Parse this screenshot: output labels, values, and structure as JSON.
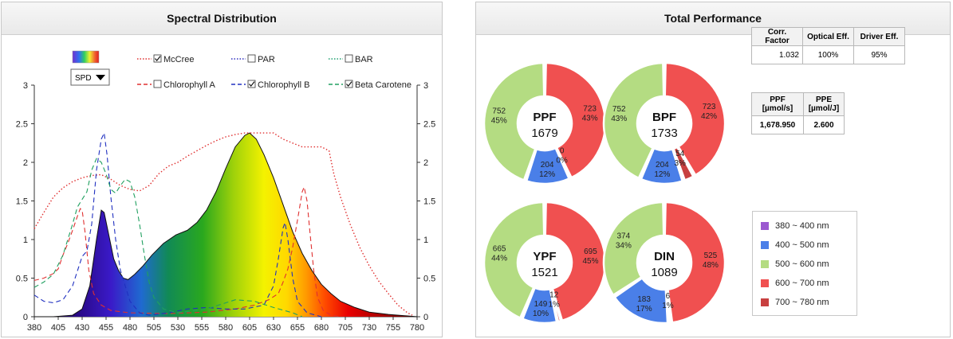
{
  "spd_panel": {
    "title": "Spectral Distribution",
    "dropdown_value": "SPD",
    "legend": [
      {
        "label": "McCree",
        "checked": true,
        "color": "#e03030",
        "style": "dotted"
      },
      {
        "label": "PAR",
        "checked": false,
        "color": "#3030c0",
        "style": "dotted"
      },
      {
        "label": "BAR",
        "checked": false,
        "color": "#20a070",
        "style": "dotted"
      },
      {
        "label": "Chlorophyll A",
        "checked": false,
        "color": "#e03030",
        "style": "dashed"
      },
      {
        "label": "Chlorophyll B",
        "checked": true,
        "color": "#2030c0",
        "style": "dashed"
      },
      {
        "label": "Beta Carotene",
        "checked": true,
        "color": "#20a060",
        "style": "dashed"
      }
    ]
  },
  "chart_data": {
    "type": "area",
    "x_ticks": [
      380,
      405,
      430,
      455,
      480,
      505,
      530,
      555,
      580,
      605,
      630,
      655,
      680,
      705,
      730,
      755,
      780
    ],
    "y_ticks": [
      "0",
      "0.5",
      "1",
      "1.5",
      "2",
      "2.5",
      "3"
    ],
    "ylim": [
      0,
      3
    ],
    "xlim": [
      380,
      780
    ],
    "series": [
      {
        "name": "SPD",
        "points": [
          [
            380,
            0
          ],
          [
            400,
            0
          ],
          [
            420,
            0.02
          ],
          [
            430,
            0.1
          ],
          [
            438,
            0.4
          ],
          [
            445,
            1.0
          ],
          [
            450,
            1.38
          ],
          [
            453,
            1.35
          ],
          [
            458,
            1.05
          ],
          [
            463,
            0.75
          ],
          [
            468,
            0.6
          ],
          [
            473,
            0.5
          ],
          [
            478,
            0.48
          ],
          [
            485,
            0.55
          ],
          [
            493,
            0.65
          ],
          [
            503,
            0.8
          ],
          [
            515,
            0.95
          ],
          [
            528,
            1.06
          ],
          [
            540,
            1.12
          ],
          [
            550,
            1.22
          ],
          [
            560,
            1.38
          ],
          [
            570,
            1.62
          ],
          [
            580,
            1.92
          ],
          [
            590,
            2.2
          ],
          [
            600,
            2.35
          ],
          [
            605,
            2.38
          ],
          [
            612,
            2.3
          ],
          [
            620,
            2.1
          ],
          [
            630,
            1.8
          ],
          [
            640,
            1.45
          ],
          [
            650,
            1.1
          ],
          [
            660,
            0.82
          ],
          [
            670,
            0.6
          ],
          [
            680,
            0.42
          ],
          [
            690,
            0.3
          ],
          [
            700,
            0.2
          ],
          [
            715,
            0.12
          ],
          [
            730,
            0.06
          ],
          [
            750,
            0.03
          ],
          [
            770,
            0.01
          ],
          [
            780,
            0
          ]
        ]
      },
      {
        "name": "McCree",
        "points": [
          [
            380,
            1.14
          ],
          [
            390,
            1.35
          ],
          [
            400,
            1.55
          ],
          [
            410,
            1.67
          ],
          [
            420,
            1.75
          ],
          [
            430,
            1.8
          ],
          [
            440,
            1.83
          ],
          [
            450,
            1.84
          ],
          [
            460,
            1.78
          ],
          [
            470,
            1.7
          ],
          [
            480,
            1.65
          ],
          [
            490,
            1.63
          ],
          [
            500,
            1.7
          ],
          [
            510,
            1.85
          ],
          [
            520,
            1.95
          ],
          [
            530,
            2.0
          ],
          [
            540,
            2.08
          ],
          [
            550,
            2.15
          ],
          [
            560,
            2.22
          ],
          [
            570,
            2.28
          ],
          [
            580,
            2.33
          ],
          [
            590,
            2.36
          ],
          [
            600,
            2.38
          ],
          [
            610,
            2.38
          ],
          [
            620,
            2.38
          ],
          [
            630,
            2.38
          ],
          [
            640,
            2.3
          ],
          [
            650,
            2.25
          ],
          [
            660,
            2.2
          ],
          [
            670,
            2.2
          ],
          [
            680,
            2.2
          ],
          [
            688,
            2.15
          ],
          [
            693,
            1.85
          ],
          [
            700,
            1.55
          ],
          [
            710,
            1.2
          ],
          [
            720,
            0.9
          ],
          [
            730,
            0.66
          ],
          [
            740,
            0.46
          ],
          [
            750,
            0.3
          ],
          [
            760,
            0.15
          ],
          [
            770,
            0.05
          ],
          [
            775,
            0.02
          ]
        ]
      },
      {
        "name": "Chlorophyll A",
        "points": [
          [
            380,
            0.47
          ],
          [
            390,
            0.5
          ],
          [
            400,
            0.56
          ],
          [
            405,
            0.62
          ],
          [
            410,
            0.8
          ],
          [
            415,
            0.95
          ],
          [
            420,
            1.12
          ],
          [
            425,
            1.3
          ],
          [
            428,
            1.4
          ],
          [
            430,
            1.38
          ],
          [
            433,
            1.1
          ],
          [
            437,
            0.6
          ],
          [
            442,
            0.3
          ],
          [
            450,
            0.15
          ],
          [
            460,
            0.08
          ],
          [
            480,
            0.05
          ],
          [
            520,
            0.04
          ],
          [
            560,
            0.06
          ],
          [
            590,
            0.1
          ],
          [
            610,
            0.15
          ],
          [
            625,
            0.22
          ],
          [
            635,
            0.3
          ],
          [
            640,
            0.45
          ],
          [
            645,
            0.62
          ],
          [
            650,
            0.9
          ],
          [
            655,
            1.25
          ],
          [
            660,
            1.62
          ],
          [
            662,
            1.68
          ],
          [
            665,
            1.5
          ],
          [
            668,
            1.1
          ],
          [
            672,
            0.6
          ],
          [
            676,
            0.25
          ],
          [
            682,
            0.08
          ],
          [
            690,
            0.02
          ],
          [
            700,
            0
          ]
        ]
      },
      {
        "name": "Chlorophyll B",
        "points": [
          [
            380,
            0.28
          ],
          [
            390,
            0.2
          ],
          [
            400,
            0.18
          ],
          [
            410,
            0.22
          ],
          [
            420,
            0.4
          ],
          [
            430,
            0.78
          ],
          [
            435,
            0.85
          ],
          [
            440,
            1.2
          ],
          [
            445,
            1.9
          ],
          [
            450,
            2.3
          ],
          [
            453,
            2.38
          ],
          [
            456,
            2.1
          ],
          [
            460,
            1.55
          ],
          [
            465,
            1.0
          ],
          [
            470,
            0.6
          ],
          [
            475,
            0.4
          ],
          [
            480,
            0.2
          ],
          [
            490,
            0.05
          ],
          [
            500,
            0.02
          ],
          [
            520,
            0.05
          ],
          [
            540,
            0.1
          ],
          [
            560,
            0.12
          ],
          [
            580,
            0.1
          ],
          [
            600,
            0.1
          ],
          [
            620,
            0.15
          ],
          [
            630,
            0.4
          ],
          [
            635,
            0.75
          ],
          [
            640,
            1.15
          ],
          [
            642,
            1.22
          ],
          [
            645,
            1.0
          ],
          [
            650,
            0.5
          ],
          [
            655,
            0.2
          ],
          [
            665,
            0.05
          ],
          [
            680,
            0
          ]
        ]
      },
      {
        "name": "Beta Carotene",
        "points": [
          [
            380,
            0.38
          ],
          [
            390,
            0.45
          ],
          [
            400,
            0.55
          ],
          [
            410,
            0.8
          ],
          [
            420,
            1.2
          ],
          [
            425,
            1.42
          ],
          [
            430,
            1.52
          ],
          [
            435,
            1.62
          ],
          [
            440,
            1.9
          ],
          [
            445,
            2.05
          ],
          [
            450,
            2.0
          ],
          [
            455,
            1.85
          ],
          [
            460,
            1.65
          ],
          [
            465,
            1.6
          ],
          [
            470,
            1.7
          ],
          [
            475,
            1.78
          ],
          [
            480,
            1.75
          ],
          [
            485,
            1.55
          ],
          [
            490,
            1.2
          ],
          [
            495,
            0.8
          ],
          [
            500,
            0.45
          ],
          [
            505,
            0.25
          ],
          [
            515,
            0.1
          ],
          [
            530,
            0.05
          ],
          [
            560,
            0.1
          ],
          [
            590,
            0.22
          ],
          [
            610,
            0.2
          ],
          [
            630,
            0.12
          ],
          [
            650,
            0.05
          ],
          [
            660,
            0
          ]
        ]
      }
    ]
  },
  "performance_panel": {
    "title": "Total Performance",
    "donuts": [
      {
        "name": "PPF",
        "total": "1679",
        "segments": [
          {
            "value": 0,
            "value_label": "0",
            "pct_label": "0%",
            "band": "380-400"
          },
          {
            "value": 204,
            "value_label": "204",
            "pct_label": "12%",
            "band": "400-500"
          },
          {
            "value": 752,
            "value_label": "752",
            "pct_label": "45%",
            "band": "500-600"
          },
          {
            "value": 723,
            "value_label": "723",
            "pct_label": "43%",
            "band": "600-700"
          },
          {
            "value": 0,
            "value_label": "0",
            "pct_label": "0%",
            "band": "700-780"
          }
        ]
      },
      {
        "name": "BPF",
        "total": "1733",
        "segments": [
          {
            "value": 0,
            "value_label": "0",
            "pct_label": "0%",
            "band": "380-400"
          },
          {
            "value": 204,
            "value_label": "204",
            "pct_label": "12%",
            "band": "400-500"
          },
          {
            "value": 752,
            "value_label": "752",
            "pct_label": "43%",
            "band": "500-600"
          },
          {
            "value": 723,
            "value_label": "723",
            "pct_label": "42%",
            "band": "600-700"
          },
          {
            "value": 54,
            "value_label": "54",
            "pct_label": "3%",
            "band": "700-780"
          }
        ]
      },
      {
        "name": "YPF",
        "total": "1521",
        "segments": [
          {
            "value": 0,
            "value_label": "0",
            "pct_label": "0%",
            "band": "380-400"
          },
          {
            "value": 149,
            "value_label": "149",
            "pct_label": "10%",
            "band": "400-500"
          },
          {
            "value": 665,
            "value_label": "665",
            "pct_label": "44%",
            "band": "500-600"
          },
          {
            "value": 695,
            "value_label": "695",
            "pct_label": "45%",
            "band": "600-700"
          },
          {
            "value": 12,
            "value_label": "12",
            "pct_label": "1%",
            "band": "700-780"
          }
        ]
      },
      {
        "name": "DIN",
        "total": "1089",
        "segments": [
          {
            "value": 0,
            "value_label": "0",
            "pct_label": "0%",
            "band": "380-400"
          },
          {
            "value": 183,
            "value_label": "183",
            "pct_label": "17%",
            "band": "400-500"
          },
          {
            "value": 374,
            "value_label": "374",
            "pct_label": "34%",
            "band": "500-600"
          },
          {
            "value": 525,
            "value_label": "525",
            "pct_label": "48%",
            "band": "600-700"
          },
          {
            "value": 6,
            "value_label": "6",
            "pct_label": "1%",
            "band": "700-780"
          }
        ]
      }
    ],
    "factors_table": {
      "headers": [
        "Corr. Factor",
        "Optical Eff.",
        "Driver Eff."
      ],
      "values": [
        "1.032",
        "100%",
        "95%"
      ]
    },
    "ppf_table": {
      "headers": [
        "PPF [µmol/s]",
        "PPE [µmol/J]"
      ],
      "values": [
        "1,678.950",
        "2.600"
      ]
    },
    "band_legend": [
      {
        "label": "380 ~ 400 nm",
        "color": "#9b59d0"
      },
      {
        "label": "400 ~ 500 nm",
        "color": "#4a7fe8"
      },
      {
        "label": "500 ~ 600 nm",
        "color": "#b4dc82"
      },
      {
        "label": "600 ~ 700 nm",
        "color": "#f05050"
      },
      {
        "label": "700 ~ 780 nm",
        "color": "#c84040"
      }
    ]
  }
}
